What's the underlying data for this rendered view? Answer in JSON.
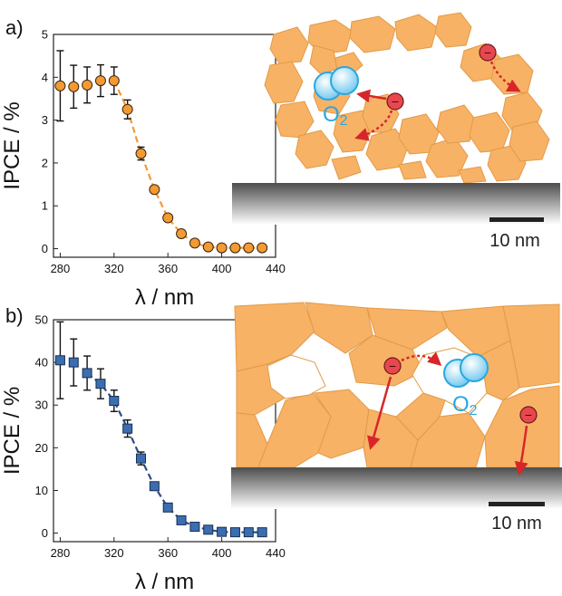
{
  "panel_a_label": "a)",
  "panel_b_label": "b)",
  "chart_data": [
    {
      "type": "scatter",
      "panel": "a",
      "xlabel": "λ / nm",
      "ylabel": "IPCE / %",
      "xlim": [
        275,
        440
      ],
      "ylim": [
        -0.2,
        5
      ],
      "xticks": [
        280,
        320,
        360,
        400,
        440
      ],
      "yticks": [
        0,
        1,
        2,
        3,
        4,
        5
      ],
      "marker": "circle",
      "marker_color": "#f39a33",
      "line_color": "#f39a33",
      "x": [
        280,
        290,
        300,
        310,
        320,
        330,
        340,
        350,
        360,
        370,
        380,
        390,
        400,
        410,
        420,
        430
      ],
      "y": [
        3.8,
        3.78,
        3.82,
        3.92,
        3.92,
        3.25,
        2.22,
        1.38,
        0.72,
        0.35,
        0.13,
        0.04,
        0.02,
        0.02,
        0.02,
        0.02
      ],
      "err": [
        0.82,
        0.5,
        0.42,
        0.37,
        0.32,
        0.22,
        0.15,
        0,
        0,
        0,
        0,
        0,
        0,
        0,
        0,
        0
      ]
    },
    {
      "type": "scatter",
      "panel": "b",
      "xlabel": "λ / nm",
      "ylabel": "IPCE / %",
      "xlim": [
        275,
        440
      ],
      "ylim": [
        -2,
        50
      ],
      "xticks": [
        280,
        320,
        360,
        400,
        440
      ],
      "yticks": [
        0,
        10,
        20,
        30,
        40,
        50
      ],
      "marker": "square",
      "marker_color": "#3b6eb1",
      "line_color": "#2b4e86",
      "x": [
        280,
        290,
        300,
        310,
        320,
        330,
        340,
        350,
        360,
        370,
        380,
        390,
        400,
        410,
        420,
        430
      ],
      "y": [
        40.5,
        40,
        37.5,
        35,
        31,
        24.5,
        17.5,
        11,
        6,
        3,
        1.5,
        0.8,
        0.3,
        0.2,
        0.2,
        0.2
      ],
      "err": [
        9,
        5.5,
        4,
        3.5,
        2.5,
        2,
        1.5,
        0,
        0,
        0,
        0,
        0,
        0,
        0,
        0,
        0
      ]
    }
  ],
  "illustrations": {
    "a": {
      "o2_label": "O",
      "o2_sub": "2",
      "scale_label": "10 nm",
      "electron_symbol": "−"
    },
    "b": {
      "o2_label": "O",
      "o2_sub": "2",
      "scale_label": "10 nm",
      "electron_symbol": "−"
    }
  },
  "colors": {
    "particle": "#f7b266",
    "particle_stroke": "#e39a47",
    "electron": "#e8474f",
    "arrow": "#d7262a",
    "o2": "#29a8e0"
  }
}
